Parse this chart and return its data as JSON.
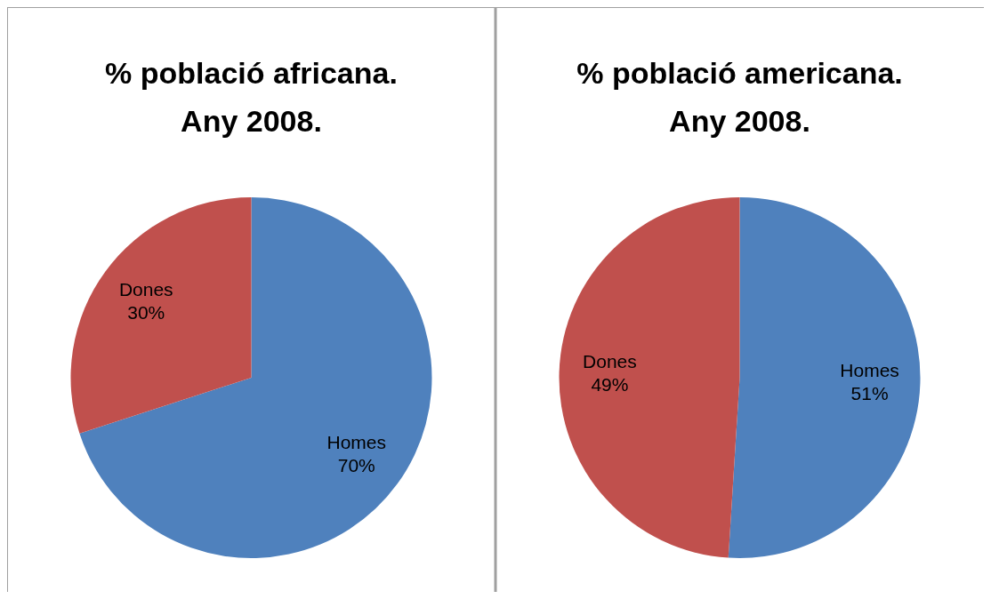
{
  "chart_data": [
    {
      "type": "pie",
      "title": "% població africana. Any 2008.",
      "categories": [
        "Homes",
        "Dones"
      ],
      "values": [
        70,
        30
      ],
      "colors": [
        "#4f81bd",
        "#c0504d"
      ],
      "value_labels": [
        "70%",
        "30%"
      ]
    },
    {
      "type": "pie",
      "title": "% població americana. Any 2008.",
      "categories": [
        "Homes",
        "Dones"
      ],
      "values": [
        51,
        49
      ],
      "colors": [
        "#4f81bd",
        "#c0504d"
      ],
      "value_labels": [
        "51%",
        "49%"
      ]
    }
  ]
}
